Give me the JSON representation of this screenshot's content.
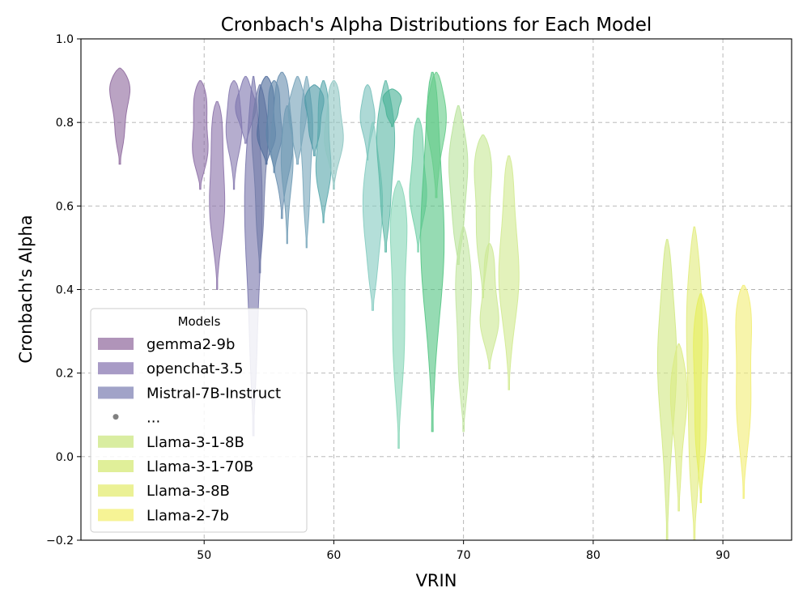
{
  "chart_data": {
    "type": "violin",
    "title": "Cronbach's Alpha Distributions for Each Model",
    "xlabel": "VRIN",
    "ylabel": "Cronbach's Alpha",
    "xlim": [
      40.5,
      95.3
    ],
    "ylim": [
      -0.2,
      1.0
    ],
    "xticks": [
      50,
      60,
      70,
      80,
      90
    ],
    "yticks": [
      -0.2,
      0.0,
      0.2,
      0.4,
      0.6,
      0.8,
      1.0
    ],
    "xtick_labels": [
      "50",
      "60",
      "70",
      "80",
      "90"
    ],
    "ytick_labels": [
      "−0.2",
      "0.0",
      "0.2",
      "0.4",
      "0.6",
      "0.8",
      "1.0"
    ],
    "grid": true,
    "legend": {
      "title": "Models",
      "placement": "lower-left",
      "entries": [
        {
          "label": "gemma2-9b",
          "color": "#9c79a8",
          "kind": "patch"
        },
        {
          "label": "openchat-3.5",
          "color": "#9282b8",
          "kind": "patch"
        },
        {
          "label": "Mistral-7B-Instruct",
          "color": "#8a8cba",
          "kind": "patch"
        },
        {
          "label": "...",
          "color": "#808080",
          "kind": "dot"
        },
        {
          "label": "Llama-3-1-8B",
          "color": "#cfe88a",
          "kind": "patch"
        },
        {
          "label": "Llama-3-1-70B",
          "color": "#d8eb80",
          "kind": "patch"
        },
        {
          "label": "Llama-3-8B",
          "color": "#e6ee7a",
          "kind": "patch"
        },
        {
          "label": "Llama-2-7b",
          "color": "#f4f07a",
          "kind": "patch"
        }
      ]
    },
    "series": [
      {
        "x": 43.5,
        "min": 0.7,
        "max": 0.93,
        "width": 1.6,
        "color": "#8f6a9e"
      },
      {
        "x": 49.7,
        "min": 0.64,
        "max": 0.9,
        "width": 1.5,
        "color": "#8d6fa6"
      },
      {
        "x": 51.0,
        "min": 0.4,
        "max": 0.85,
        "width": 1.4,
        "color": "#8c74ab"
      },
      {
        "x": 52.3,
        "min": 0.64,
        "max": 0.9,
        "width": 1.4,
        "color": "#877bb0"
      },
      {
        "x": 53.2,
        "min": 0.75,
        "max": 0.91,
        "width": 1.6,
        "color": "#8078b0"
      },
      {
        "x": 53.8,
        "min": 0.05,
        "max": 0.91,
        "width": 1.4,
        "color": "#7a78ad"
      },
      {
        "x": 54.3,
        "min": 0.44,
        "max": 0.89,
        "width": 1.3,
        "color": "#737ca8"
      },
      {
        "x": 54.8,
        "min": 0.7,
        "max": 0.91,
        "width": 1.7,
        "color": "#4f6c9b"
      },
      {
        "x": 55.4,
        "min": 0.68,
        "max": 0.9,
        "width": 1.4,
        "color": "#5d84a8"
      },
      {
        "x": 56.0,
        "min": 0.57,
        "max": 0.92,
        "width": 1.9,
        "color": "#6a90b0"
      },
      {
        "x": 56.4,
        "min": 0.51,
        "max": 0.84,
        "width": 1.0,
        "color": "#709bb5"
      },
      {
        "x": 57.2,
        "min": 0.7,
        "max": 0.91,
        "width": 1.5,
        "color": "#75a2b8"
      },
      {
        "x": 57.9,
        "min": 0.5,
        "max": 0.91,
        "width": 1.0,
        "color": "#7aa8bc"
      },
      {
        "x": 58.5,
        "min": 0.72,
        "max": 0.89,
        "width": 1.6,
        "color": "#4d9aa6"
      },
      {
        "x": 59.2,
        "min": 0.56,
        "max": 0.9,
        "width": 1.3,
        "color": "#5aa8ad"
      },
      {
        "x": 60.0,
        "min": 0.64,
        "max": 0.9,
        "width": 1.6,
        "color": "#8fc6c3"
      },
      {
        "x": 62.6,
        "min": 0.71,
        "max": 0.89,
        "width": 1.2,
        "color": "#7ac2bd"
      },
      {
        "x": 63.0,
        "min": 0.35,
        "max": 0.8,
        "width": 1.6,
        "color": "#86ccc1"
      },
      {
        "x": 64.0,
        "min": 0.49,
        "max": 0.9,
        "width": 1.5,
        "color": "#5cb8a6"
      },
      {
        "x": 64.5,
        "min": 0.79,
        "max": 0.88,
        "width": 1.6,
        "color": "#49b296"
      },
      {
        "x": 65.0,
        "min": 0.02,
        "max": 0.66,
        "width": 1.5,
        "color": "#88d6b8"
      },
      {
        "x": 66.5,
        "min": 0.49,
        "max": 0.81,
        "width": 1.4,
        "color": "#72cfa8"
      },
      {
        "x": 67.6,
        "min": 0.06,
        "max": 0.92,
        "width": 1.9,
        "color": "#55c585"
      },
      {
        "x": 67.9,
        "min": 0.62,
        "max": 0.92,
        "width": 1.6,
        "color": "#67cd8b"
      },
      {
        "x": 69.6,
        "min": 0.46,
        "max": 0.84,
        "width": 1.6,
        "color": "#b9e39c"
      },
      {
        "x": 70.0,
        "min": 0.06,
        "max": 0.55,
        "width": 1.4,
        "color": "#c3e6a2"
      },
      {
        "x": 71.5,
        "min": 0.38,
        "max": 0.77,
        "width": 1.6,
        "color": "#c8e897"
      },
      {
        "x": 72.0,
        "min": 0.21,
        "max": 0.51,
        "width": 1.5,
        "color": "#cde995"
      },
      {
        "x": 73.5,
        "min": 0.16,
        "max": 0.72,
        "width": 1.6,
        "color": "#d2ea91"
      },
      {
        "x": 85.7,
        "min": -0.2,
        "max": 0.52,
        "width": 1.5,
        "color": "#d2e985"
      },
      {
        "x": 86.6,
        "min": -0.13,
        "max": 0.27,
        "width": 1.3,
        "color": "#dbeb84"
      },
      {
        "x": 87.8,
        "min": -0.2,
        "max": 0.55,
        "width": 1.4,
        "color": "#e2ec7e"
      },
      {
        "x": 88.3,
        "min": -0.11,
        "max": 0.39,
        "width": 1.4,
        "color": "#e6ee5c"
      },
      {
        "x": 91.6,
        "min": -0.1,
        "max": 0.41,
        "width": 1.6,
        "color": "#f2ee78"
      }
    ]
  }
}
